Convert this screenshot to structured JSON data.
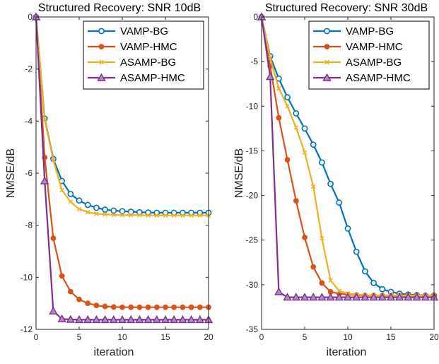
{
  "colors": {
    "VAMP-BG": "#0072BD",
    "VAMP-HMC": "#D95319",
    "ASAMP-BG": "#EDB120",
    "ASAMP-HMC": "#7E2F8E"
  },
  "chart_data": [
    {
      "type": "line",
      "title": "Structured Recovery: SNR 10dB",
      "xlabel": "iteration",
      "ylabel": "NMSE/dB",
      "xlim": [
        0,
        20
      ],
      "ylim": [
        -12,
        0
      ],
      "xticks": [
        "0",
        "5",
        "10",
        "15",
        "20"
      ],
      "yticks": [
        "-12",
        "-10",
        "-8",
        "-6",
        "-4",
        "-2",
        "0"
      ],
      "grid": false,
      "legend_position": "top-right",
      "x": [
        0,
        1,
        2,
        3,
        4,
        5,
        6,
        7,
        8,
        9,
        10,
        11,
        12,
        13,
        14,
        15,
        16,
        17,
        18,
        19,
        20
      ],
      "series": [
        {
          "name": "VAMP-BG",
          "marker": "circle",
          "values": [
            0,
            -3.9,
            -5.45,
            -6.3,
            -6.8,
            -7.05,
            -7.22,
            -7.33,
            -7.4,
            -7.44,
            -7.46,
            -7.48,
            -7.5,
            -7.51,
            -7.52,
            -7.52,
            -7.52,
            -7.52,
            -7.52,
            -7.52,
            -7.52
          ]
        },
        {
          "name": "VAMP-HMC",
          "marker": "dot",
          "values": [
            0,
            -5.4,
            -8.5,
            -9.95,
            -10.55,
            -10.85,
            -11.0,
            -11.08,
            -11.12,
            -11.14,
            -11.15,
            -11.15,
            -11.15,
            -11.15,
            -11.15,
            -11.15,
            -11.15,
            -11.15,
            -11.15,
            -11.15,
            -11.15
          ]
        },
        {
          "name": "ASAMP-BG",
          "marker": "x",
          "values": [
            0,
            -3.95,
            -5.5,
            -6.65,
            -7.1,
            -7.38,
            -7.5,
            -7.56,
            -7.58,
            -7.6,
            -7.61,
            -7.61,
            -7.61,
            -7.62,
            -7.62,
            -7.62,
            -7.62,
            -7.62,
            -7.62,
            -7.62,
            -7.62
          ]
        },
        {
          "name": "ASAMP-HMC",
          "marker": "triangle",
          "values": [
            0,
            -6.3,
            -11.3,
            -11.6,
            -11.62,
            -11.63,
            -11.63,
            -11.63,
            -11.63,
            -11.63,
            -11.63,
            -11.63,
            -11.63,
            -11.63,
            -11.63,
            -11.63,
            -11.63,
            -11.63,
            -11.63,
            -11.63,
            -11.63
          ]
        }
      ]
    },
    {
      "type": "line",
      "title": "Structured Recovery: SNR 30dB",
      "xlabel": "iteration",
      "ylabel": "NMSE/dB",
      "xlim": [
        0,
        20
      ],
      "ylim": [
        -35,
        0
      ],
      "xticks": [
        "0",
        "5",
        "10",
        "15",
        "20"
      ],
      "yticks": [
        "-35",
        "-30",
        "-25",
        "-20",
        "-15",
        "-10",
        "-5",
        "0"
      ],
      "grid": false,
      "legend_position": "top-right",
      "x": [
        0,
        1,
        2,
        3,
        4,
        5,
        6,
        7,
        8,
        9,
        10,
        11,
        12,
        13,
        14,
        15,
        16,
        17,
        18,
        19,
        20
      ],
      "series": [
        {
          "name": "VAMP-BG",
          "marker": "circle",
          "values": [
            0,
            -4.4,
            -6.9,
            -9.0,
            -10.8,
            -12.5,
            -14.3,
            -16.3,
            -18.7,
            -20.8,
            -23.7,
            -26.3,
            -28.5,
            -29.8,
            -30.5,
            -30.8,
            -31.0,
            -31.1,
            -31.15,
            -31.2,
            -31.2
          ]
        },
        {
          "name": "VAMP-HMC",
          "marker": "dot",
          "values": [
            0,
            -5.5,
            -11.3,
            -16.0,
            -20.6,
            -24.7,
            -28.0,
            -29.8,
            -30.8,
            -31.0,
            -31.1,
            -31.15,
            -31.2,
            -31.2,
            -31.2,
            -31.2,
            -31.2,
            -31.2,
            -31.2,
            -31.2,
            -31.2
          ]
        },
        {
          "name": "ASAMP-BG",
          "marker": "x",
          "values": [
            0,
            -4.6,
            -8.0,
            -10.0,
            -12.4,
            -15.2,
            -19.0,
            -24.8,
            -29.5,
            -30.7,
            -31.0,
            -31.1,
            -31.15,
            -31.2,
            -31.2,
            -31.2,
            -31.2,
            -31.2,
            -31.2,
            -31.2,
            -31.2
          ]
        },
        {
          "name": "ASAMP-HMC",
          "marker": "triangle",
          "values": [
            0,
            -6.7,
            -30.8,
            -31.4,
            -31.4,
            -31.4,
            -31.4,
            -31.4,
            -31.4,
            -31.4,
            -31.4,
            -31.4,
            -31.4,
            -31.4,
            -31.4,
            -31.4,
            -31.4,
            -31.4,
            -31.4,
            -31.4,
            -31.4
          ]
        }
      ]
    }
  ]
}
